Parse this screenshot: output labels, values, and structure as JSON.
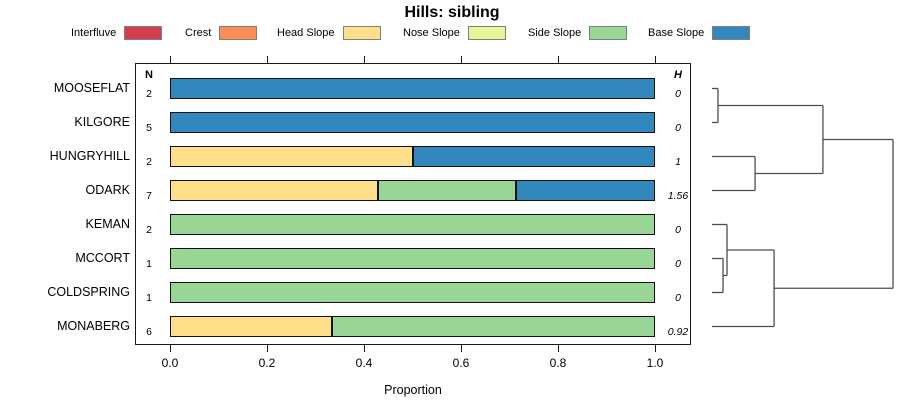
{
  "chart_data": {
    "type": "bar",
    "orientation": "horizontal",
    "stacked": true,
    "title": "Hills: sibling",
    "xlabel": "Proportion",
    "xlim": [
      0,
      1
    ],
    "x_tick_labels": [
      "0.0",
      "0.2",
      "0.4",
      "0.6",
      "0.8",
      "1.0"
    ],
    "grid": false,
    "legend_position": "top",
    "n_column_header": "N",
    "h_column_header": "H",
    "legend": [
      {
        "label": "Interfluve",
        "color": "#D53E4F"
      },
      {
        "label": "Crest",
        "color": "#FC8D59"
      },
      {
        "label": "Head Slope",
        "color": "#FEE08B"
      },
      {
        "label": "Nose Slope",
        "color": "#E6F598"
      },
      {
        "label": "Side Slope",
        "color": "#99D594"
      },
      {
        "label": "Base Slope",
        "color": "#3288BD"
      }
    ],
    "rows": [
      {
        "name": "MOOSEFLAT",
        "n": "2",
        "h": "0",
        "segments": [
          {
            "category": "Base Slope",
            "proportion": 1.0
          }
        ]
      },
      {
        "name": "KILGORE",
        "n": "5",
        "h": "0",
        "segments": [
          {
            "category": "Base Slope",
            "proportion": 1.0
          }
        ]
      },
      {
        "name": "HUNGRYHILL",
        "n": "2",
        "h": "1",
        "segments": [
          {
            "category": "Head Slope",
            "proportion": 0.5
          },
          {
            "category": "Base Slope",
            "proportion": 0.5
          }
        ]
      },
      {
        "name": "ODARK",
        "n": "7",
        "h": "1.56",
        "segments": [
          {
            "category": "Head Slope",
            "proportion": 0.4286
          },
          {
            "category": "Side Slope",
            "proportion": 0.2857
          },
          {
            "category": "Base Slope",
            "proportion": 0.2857
          }
        ]
      },
      {
        "name": "KEMAN",
        "n": "2",
        "h": "0",
        "segments": [
          {
            "category": "Side Slope",
            "proportion": 1.0
          }
        ]
      },
      {
        "name": "MCCORT",
        "n": "1",
        "h": "0",
        "segments": [
          {
            "category": "Side Slope",
            "proportion": 1.0
          }
        ]
      },
      {
        "name": "COLDSPRING",
        "n": "1",
        "h": "0",
        "segments": [
          {
            "category": "Side Slope",
            "proportion": 1.0
          }
        ]
      },
      {
        "name": "MONABERG",
        "n": "6",
        "h": "0.92",
        "segments": [
          {
            "category": "Head Slope",
            "proportion": 0.3333
          },
          {
            "category": "Side Slope",
            "proportion": 0.6667
          }
        ]
      }
    ],
    "dendrogram": {
      "leaf_order": [
        "MOOSEFLAT",
        "KILGORE",
        "HUNGRYHILL",
        "ODARK",
        "KEMAN",
        "MCCORT",
        "COLDSPRING",
        "MONABERG"
      ],
      "tree": {
        "height": 1.0,
        "children": [
          {
            "height": 0.613,
            "children": [
              {
                "height": 0.033,
                "children": [
                  {
                    "leaf": "MOOSEFLAT"
                  },
                  {
                    "leaf": "KILGORE"
                  }
                ]
              },
              {
                "height": 0.238,
                "children": [
                  {
                    "leaf": "HUNGRYHILL"
                  },
                  {
                    "leaf": "ODARK"
                  }
                ]
              }
            ]
          },
          {
            "height": 0.343,
            "children": [
              {
                "height": 0.083,
                "children": [
                  {
                    "leaf": "KEMAN"
                  },
                  {
                    "height": 0.061,
                    "children": [
                      {
                        "leaf": "MCCORT"
                      },
                      {
                        "leaf": "COLDSPRING"
                      }
                    ]
                  }
                ]
              },
              {
                "leaf": "MONABERG"
              }
            ]
          }
        ]
      }
    }
  }
}
